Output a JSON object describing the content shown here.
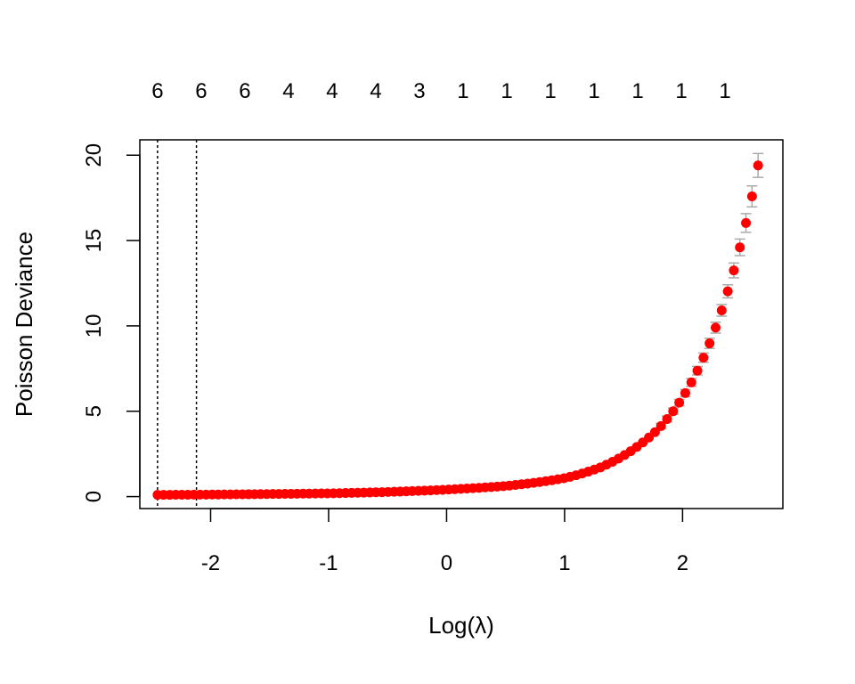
{
  "chart_data": {
    "type": "scatter",
    "title": "",
    "xlabel": "Log(λ)",
    "ylabel": "Poisson Deviance",
    "xlim": [
      -2.6,
      2.85
    ],
    "ylim": [
      -0.7,
      20.9
    ],
    "x_ticks": [
      -2,
      -1,
      0,
      1,
      2
    ],
    "x_tick_labels": [
      "-2",
      "-1",
      "0",
      "1",
      "2"
    ],
    "y_ticks": [
      0,
      5,
      10,
      15,
      20
    ],
    "y_tick_labels": [
      "0",
      "5",
      "10",
      "15",
      "20"
    ],
    "top_axis": {
      "positions": [
        -2.45,
        -2.08,
        -1.71,
        -1.34,
        -0.97,
        -0.6,
        -0.23,
        0.14,
        0.51,
        0.88,
        1.25,
        1.62,
        1.99,
        2.36
      ],
      "labels": [
        "6",
        "6",
        "6",
        "4",
        "4",
        "4",
        "3",
        "1",
        "1",
        "1",
        "1",
        "1",
        "1",
        "1"
      ]
    },
    "reference_lines": [
      -2.45,
      -2.12
    ],
    "x_min": -2.45,
    "x_max": 2.64,
    "n_points": 100,
    "anchor_points": [
      [
        -2.45,
        0.1
      ],
      [
        -2.0,
        0.12
      ],
      [
        -1.5,
        0.15
      ],
      [
        -1.0,
        0.19
      ],
      [
        -0.5,
        0.27
      ],
      [
        0.0,
        0.41
      ],
      [
        0.5,
        0.62
      ],
      [
        1.0,
        1.08
      ],
      [
        1.3,
        1.7
      ],
      [
        1.6,
        2.85
      ],
      [
        1.8,
        4.0
      ],
      [
        2.0,
        5.8
      ],
      [
        2.2,
        8.5
      ],
      [
        2.35,
        11.3
      ],
      [
        2.5,
        15.0
      ],
      [
        2.58,
        17.3
      ],
      [
        2.64,
        19.4
      ]
    ],
    "error_bar_half_widths": [
      [
        1.8,
        0.15
      ],
      [
        2.0,
        0.2
      ],
      [
        2.2,
        0.28
      ],
      [
        2.35,
        0.35
      ],
      [
        2.5,
        0.5
      ],
      [
        2.58,
        0.6
      ],
      [
        2.64,
        0.7
      ]
    ],
    "point_color": "#ff0000",
    "error_bar_color": "#aaaaaa",
    "grid": false,
    "legend": "none"
  }
}
